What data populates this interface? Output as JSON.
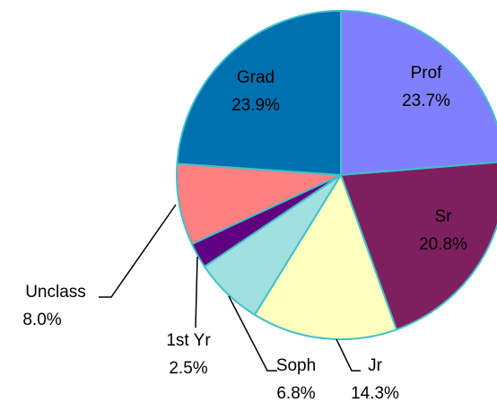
{
  "chart_data": {
    "type": "pie",
    "categories": [
      "Prof",
      "Sr",
      "Jr",
      "Soph",
      "1st Yr",
      "Unclass",
      "Grad"
    ],
    "values": [
      23.7,
      20.8,
      14.3,
      6.8,
      2.5,
      8.0,
      23.9
    ],
    "value_labels": [
      "23.7%",
      "20.8%",
      "14.3%",
      "6.8%",
      "2.5%",
      "8.0%",
      "23.9%"
    ],
    "colors": [
      "#8080ff",
      "#801f5f",
      "#ffffc0",
      "#a0e0e0",
      "#600080",
      "#ff8080",
      "#0070b0"
    ]
  }
}
